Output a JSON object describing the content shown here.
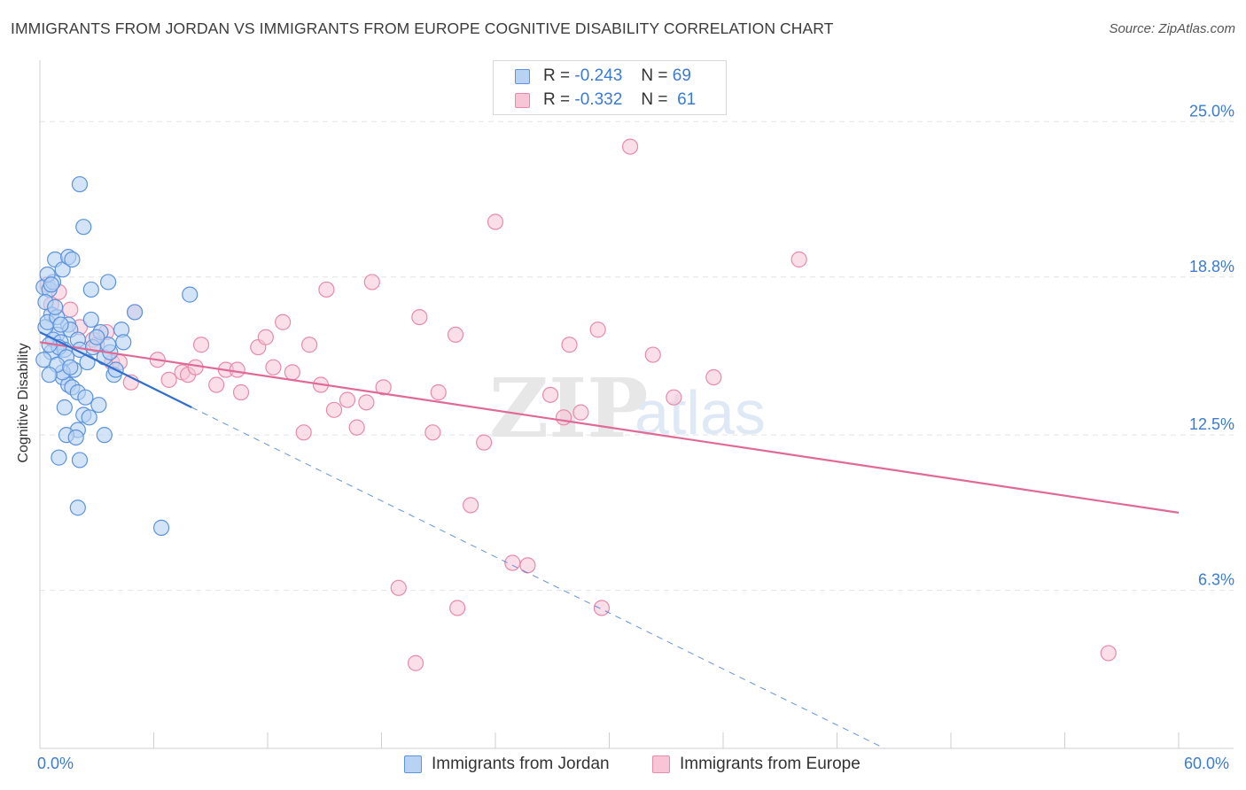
{
  "header": {
    "title": "IMMIGRANTS FROM JORDAN VS IMMIGRANTS FROM EUROPE COGNITIVE DISABILITY CORRELATION CHART",
    "source": "Source: ZipAtlas.com"
  },
  "legend": {
    "rows": [
      {
        "r_label": "R =",
        "r_value": "-0.243",
        "n_label": "N =",
        "n_value": "69"
      },
      {
        "r_label": "R =",
        "r_value": "-0.332",
        "n_label": "N =",
        "n_value": "61"
      }
    ]
  },
  "bottom_legend": {
    "jordan": "Immigrants from Jordan",
    "europe": "Immigrants from Europe"
  },
  "watermark": {
    "zip": "ZIP",
    "atlas": "atlas"
  },
  "colors": {
    "jordan_fill": "#b8d2f3",
    "jordan_stroke": "#5b93dc",
    "jordan_line": "#2f6fd0",
    "europe_fill": "#f8c5d6",
    "europe_stroke": "#e88aaa",
    "europe_line": "#e06a95",
    "tick_text": "#3a7bd5",
    "grid": "#e3e3e3"
  },
  "chart_data": {
    "type": "scatter",
    "title": "IMMIGRANTS FROM JORDAN VS IMMIGRANTS FROM EUROPE COGNITIVE DISABILITY CORRELATION CHART",
    "xlabel": "",
    "ylabel": "Cognitive Disability",
    "xlim": [
      0,
      60
    ],
    "ylim": [
      0,
      27.2
    ],
    "x_tick_labels": [
      "0.0%",
      "60.0%"
    ],
    "y_ticks": [
      {
        "value": 6.3,
        "label": "6.3%"
      },
      {
        "value": 12.5,
        "label": "12.5%"
      },
      {
        "value": 18.8,
        "label": "18.8%"
      },
      {
        "value": 25.0,
        "label": "25.0%"
      }
    ],
    "x_minor_ticks": [
      6,
      12,
      18,
      24,
      30,
      36,
      42,
      48,
      54,
      60
    ],
    "series": [
      {
        "name": "Immigrants from Jordan",
        "R": -0.243,
        "N": 69,
        "points": [
          [
            0.2,
            18.4
          ],
          [
            0.5,
            18.3
          ],
          [
            0.8,
            19.5
          ],
          [
            1.2,
            19.1
          ],
          [
            0.6,
            17.3
          ],
          [
            0.9,
            16.5
          ],
          [
            0.3,
            16.8
          ],
          [
            0.7,
            16.3
          ],
          [
            1.1,
            16.2
          ],
          [
            0.4,
            17.0
          ],
          [
            1.5,
            16.9
          ],
          [
            0.6,
            15.8
          ],
          [
            1.3,
            15.9
          ],
          [
            1.6,
            16.7
          ],
          [
            0.2,
            15.5
          ],
          [
            0.9,
            17.2
          ],
          [
            1.0,
            16.0
          ],
          [
            1.4,
            15.6
          ],
          [
            2.0,
            16.3
          ],
          [
            2.1,
            15.9
          ],
          [
            1.8,
            15.1
          ],
          [
            2.5,
            15.4
          ],
          [
            0.3,
            17.8
          ],
          [
            0.5,
            16.1
          ],
          [
            1.2,
            14.8
          ],
          [
            1.5,
            14.5
          ],
          [
            1.7,
            14.4
          ],
          [
            2.0,
            14.2
          ],
          [
            2.4,
            14.0
          ],
          [
            3.1,
            13.7
          ],
          [
            1.3,
            13.6
          ],
          [
            2.3,
            13.3
          ],
          [
            2.6,
            13.2
          ],
          [
            2.0,
            12.7
          ],
          [
            1.4,
            12.5
          ],
          [
            1.9,
            12.4
          ],
          [
            3.4,
            12.5
          ],
          [
            1.0,
            11.6
          ],
          [
            2.1,
            11.5
          ],
          [
            2.0,
            9.6
          ],
          [
            6.4,
            8.8
          ],
          [
            3.6,
            18.6
          ],
          [
            2.7,
            18.3
          ],
          [
            4.3,
            16.7
          ],
          [
            4.4,
            16.2
          ],
          [
            3.4,
            15.6
          ],
          [
            3.7,
            15.8
          ],
          [
            3.9,
            14.9
          ],
          [
            3.6,
            16.1
          ],
          [
            2.7,
            17.1
          ],
          [
            1.2,
            15.0
          ],
          [
            0.7,
            18.6
          ],
          [
            0.4,
            18.9
          ],
          [
            0.6,
            18.5
          ],
          [
            0.8,
            17.6
          ],
          [
            1.1,
            16.9
          ],
          [
            5.0,
            17.4
          ],
          [
            7.9,
            18.1
          ],
          [
            2.1,
            22.5
          ],
          [
            2.3,
            20.8
          ],
          [
            1.5,
            19.6
          ],
          [
            1.7,
            19.5
          ],
          [
            3.2,
            16.6
          ],
          [
            2.8,
            16.0
          ],
          [
            0.9,
            15.3
          ],
          [
            0.5,
            14.9
          ],
          [
            4.0,
            15.1
          ],
          [
            1.6,
            15.2
          ],
          [
            3.0,
            16.4
          ]
        ]
      },
      {
        "name": "Immigrants from Europe",
        "R": -0.332,
        "N": 61,
        "points": [
          [
            0.4,
            18.5
          ],
          [
            1.0,
            18.2
          ],
          [
            0.6,
            17.7
          ],
          [
            2.1,
            16.8
          ],
          [
            3.5,
            16.6
          ],
          [
            5.0,
            17.4
          ],
          [
            2.8,
            16.3
          ],
          [
            3.8,
            15.4
          ],
          [
            4.2,
            15.4
          ],
          [
            4.8,
            14.6
          ],
          [
            6.2,
            15.5
          ],
          [
            6.8,
            14.7
          ],
          [
            7.5,
            15.0
          ],
          [
            7.8,
            14.9
          ],
          [
            8.2,
            15.2
          ],
          [
            8.5,
            16.1
          ],
          [
            9.3,
            14.5
          ],
          [
            9.8,
            15.1
          ],
          [
            10.4,
            15.1
          ],
          [
            10.6,
            14.2
          ],
          [
            11.5,
            16.0
          ],
          [
            11.9,
            16.4
          ],
          [
            12.3,
            15.2
          ],
          [
            12.8,
            17.0
          ],
          [
            13.3,
            15.0
          ],
          [
            13.9,
            12.6
          ],
          [
            14.2,
            16.1
          ],
          [
            14.8,
            14.5
          ],
          [
            15.1,
            18.3
          ],
          [
            15.5,
            13.5
          ],
          [
            16.2,
            13.9
          ],
          [
            16.7,
            12.8
          ],
          [
            17.2,
            13.8
          ],
          [
            17.5,
            18.6
          ],
          [
            18.1,
            14.4
          ],
          [
            20.0,
            17.2
          ],
          [
            20.7,
            12.6
          ],
          [
            21.0,
            14.2
          ],
          [
            21.9,
            16.5
          ],
          [
            22.7,
            9.7
          ],
          [
            23.4,
            12.2
          ],
          [
            24.0,
            21.0
          ],
          [
            24.9,
            7.4
          ],
          [
            25.7,
            7.3
          ],
          [
            26.9,
            14.1
          ],
          [
            27.6,
            13.2
          ],
          [
            27.9,
            16.1
          ],
          [
            28.5,
            13.4
          ],
          [
            29.4,
            16.7
          ],
          [
            29.6,
            5.6
          ],
          [
            32.3,
            15.7
          ],
          [
            33.4,
            14.0
          ],
          [
            35.5,
            14.8
          ],
          [
            40.0,
            19.5
          ],
          [
            18.9,
            6.4
          ],
          [
            19.8,
            3.4
          ],
          [
            22.0,
            5.6
          ],
          [
            56.3,
            3.8
          ],
          [
            31.1,
            24.0
          ],
          [
            1.6,
            17.5
          ],
          [
            3.0,
            16.1
          ]
        ]
      }
    ],
    "trend_lines": [
      {
        "series": "Immigrants from Jordan",
        "solid": [
          [
            0,
            16.6
          ],
          [
            8.0,
            13.6
          ]
        ],
        "dashed": [
          [
            8.0,
            13.6
          ],
          [
            44.5,
            0
          ]
        ]
      },
      {
        "series": "Immigrants from Europe",
        "solid": [
          [
            0,
            16.2
          ],
          [
            60,
            9.4
          ]
        ]
      }
    ]
  }
}
